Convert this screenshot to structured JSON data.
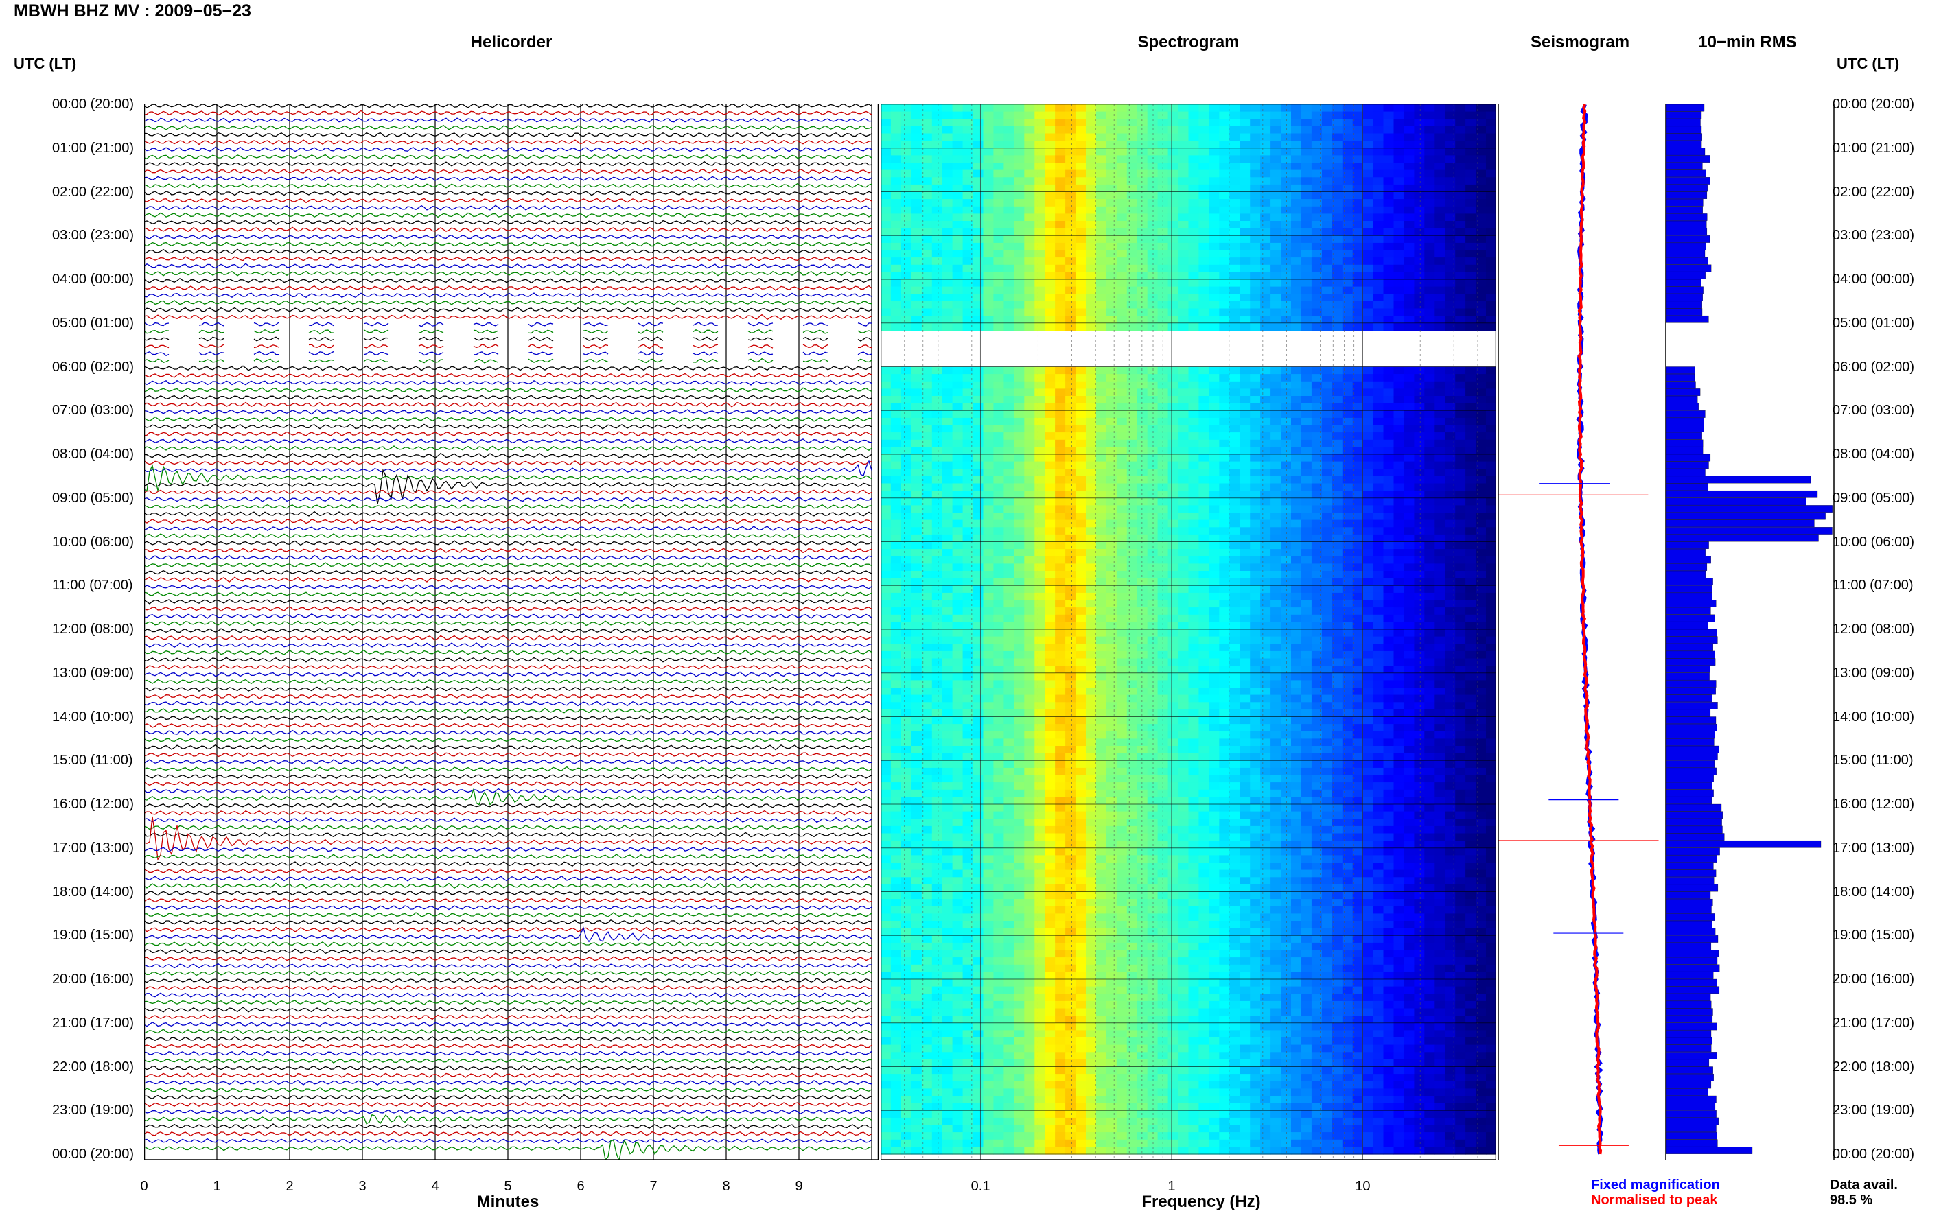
{
  "page": {
    "title": "MBWH BHZ MV : 2009−05−23"
  },
  "left_axis_label": "UTC (LT)",
  "right_axis_label": "UTC (LT)",
  "panels": {
    "helicorder": {
      "title": "Helicorder",
      "xlabel": "Minutes"
    },
    "spectrogram": {
      "title": "Spectrogram",
      "xlabel": "Frequency (Hz)"
    },
    "seismogram": {
      "title": "Seismogram"
    },
    "rms": {
      "title": "10−min RMS"
    }
  },
  "legend": {
    "fixed": "Fixed magnification",
    "normalised": "Normalised to peak",
    "fixed_color": "#0000ff",
    "normalised_color": "#ff0000"
  },
  "data_avail": {
    "label": "Data avail.",
    "value": "98.5 %"
  },
  "colors": {
    "trace_cycle": [
      "#000000",
      "#cc0000",
      "#0000cc",
      "#008800"
    ]
  },
  "chart_data": [
    {
      "type": "line",
      "name": "helicorder",
      "xlabel": "Minutes",
      "xlim": [
        0,
        10
      ],
      "x_ticks": [
        "0",
        "1",
        "2",
        "3",
        "4",
        "5",
        "6",
        "7",
        "8",
        "9"
      ],
      "row_minutes": 10,
      "rows": 144,
      "time_labels": [
        "00:00 (20:00)",
        "01:00 (21:00)",
        "02:00 (22:00)",
        "03:00 (23:00)",
        "04:00 (00:00)",
        "05:00 (01:00)",
        "06:00 (02:00)",
        "07:00 (03:00)",
        "08:00 (04:00)",
        "09:00 (05:00)",
        "10:00 (06:00)",
        "11:00 (07:00)",
        "12:00 (08:00)",
        "13:00 (09:00)",
        "14:00 (10:00)",
        "15:00 (11:00)",
        "16:00 (12:00)",
        "17:00 (13:00)",
        "18:00 (14:00)",
        "19:00 (15:00)",
        "20:00 (16:00)",
        "21:00 (17:00)",
        "22:00 (18:00)",
        "23:00 (19:00)",
        "00:00 (20:00)"
      ],
      "gaps": [
        {
          "start_hour": 5.0,
          "end_hour": 5.9
        }
      ],
      "events": [
        {
          "hour": 8.5,
          "minute": 0.0,
          "amp": 3.5
        },
        {
          "hour": 8.67,
          "minute": 3.2,
          "amp": 5.0
        },
        {
          "hour": 8.33,
          "minute": 9.8,
          "amp": 2.0
        },
        {
          "hour": 15.83,
          "minute": 4.5,
          "amp": 2.2
        },
        {
          "hour": 16.83,
          "minute": 0.1,
          "amp": 6.0
        },
        {
          "hour": 19.0,
          "minute": 6.0,
          "amp": 1.5
        },
        {
          "hour": 23.17,
          "minute": 3.0,
          "amp": 1.2
        },
        {
          "hour": 23.83,
          "minute": 6.3,
          "amp": 3.5
        }
      ]
    },
    {
      "type": "heatmap",
      "name": "spectrogram",
      "xlabel": "Frequency (Hz)",
      "x_scale": "log",
      "xlim": [
        0.03,
        50
      ],
      "x_ticks": [
        "0.1",
        "1",
        "10"
      ],
      "peak_band_hz": [
        0.2,
        0.45
      ],
      "gaps": [
        {
          "start_hour": 5.1,
          "end_hour": 6.0
        }
      ]
    },
    {
      "type": "line",
      "name": "seismogram",
      "series": [
        {
          "name": "Fixed magnification",
          "color": "#0000ff"
        },
        {
          "name": "Normalised to peak",
          "color": "#ff0000"
        }
      ],
      "spikes_hour": [
        8.67,
        8.93,
        15.9,
        16.83,
        18.95,
        23.8
      ]
    },
    {
      "type": "bar",
      "name": "10-min RMS",
      "orientation": "horizontal",
      "hours": [
        0,
        1,
        2,
        3,
        4,
        5,
        6,
        7,
        8,
        9,
        10,
        11,
        12,
        13,
        14,
        15,
        16,
        17,
        18,
        19,
        20,
        21,
        22,
        23
      ],
      "values": [
        55,
        58,
        54,
        60,
        56,
        0,
        45,
        52,
        60,
        220,
        62,
        66,
        70,
        68,
        72,
        70,
        80,
        75,
        68,
        72,
        70,
        68,
        66,
        70
      ],
      "peaks": [
        {
          "hour": 8.5,
          "value": 210
        },
        {
          "hour": 8.9,
          "value": 220
        },
        {
          "hour": 15.95,
          "value": 80
        },
        {
          "hour": 16.9,
          "value": 225
        },
        {
          "hour": 18.95,
          "value": 75
        },
        {
          "hour": 23.85,
          "value": 125
        }
      ],
      "xlim": [
        0,
        240
      ]
    }
  ]
}
